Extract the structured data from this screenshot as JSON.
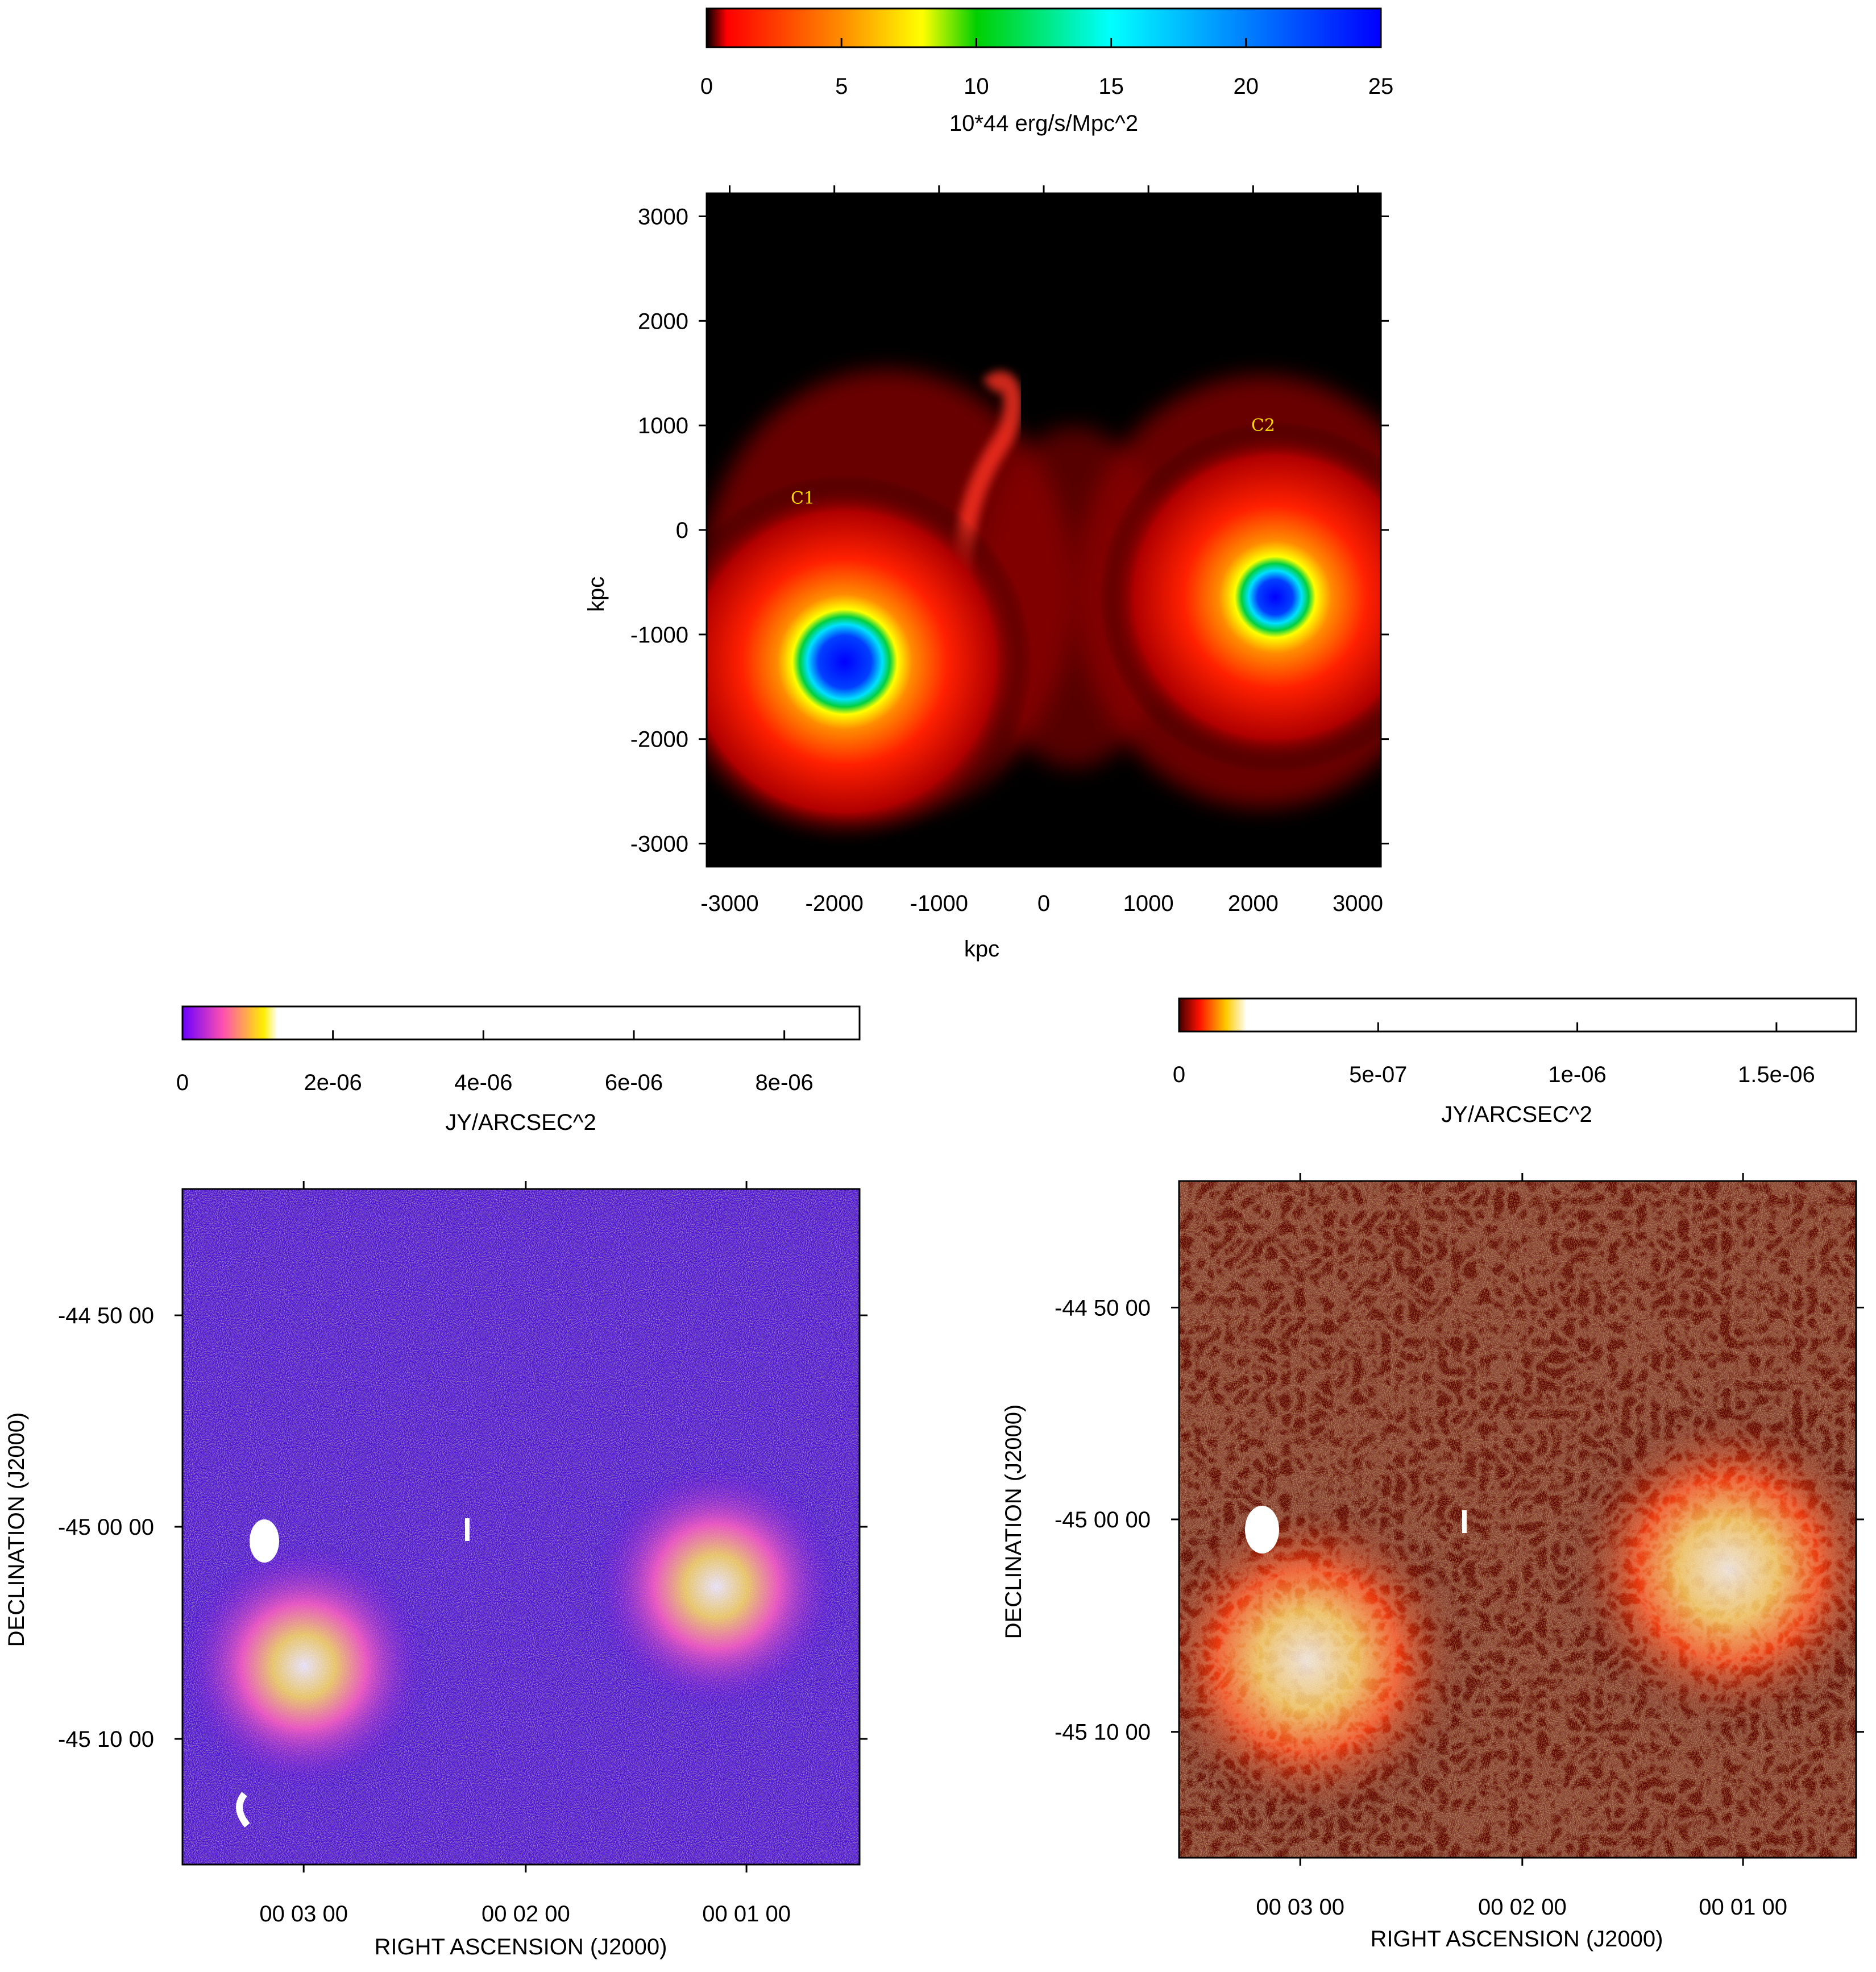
{
  "top_panel": {
    "colorbar": {
      "tick_labels": [
        "0",
        "5",
        "10",
        "15",
        "20",
        "25"
      ],
      "tick_values": [
        0,
        5,
        10,
        15,
        20,
        25
      ],
      "label": "10*44 erg/s/Mpc^2",
      "colormap": [
        "#000000",
        "#ff0000",
        "#ff8c00",
        "#ffff00",
        "#00e000",
        "#00ffff",
        "#0080ff",
        "#0000ff"
      ]
    },
    "axes": {
      "x_tick_labels": [
        "-3000",
        "-2000",
        "-1000",
        "0",
        "1000",
        "2000",
        "3000"
      ],
      "x_tick_values": [
        -3000,
        -2000,
        -1000,
        0,
        1000,
        2000,
        3000
      ],
      "y_tick_labels": [
        "3000",
        "2000",
        "1000",
        "0",
        "-1000",
        "-2000",
        "-3000"
      ],
      "y_tick_values": [
        3000,
        2000,
        1000,
        0,
        -1000,
        -2000,
        -3000
      ],
      "xlabel": "kpc",
      "ylabel": "kpc"
    },
    "annotations": {
      "c1": "C1",
      "c2": "C2"
    }
  },
  "bottom_left_panel": {
    "colorbar": {
      "tick_labels": [
        "0",
        "2e-06",
        "4e-06",
        "6e-06",
        "8e-06"
      ],
      "tick_values": [
        0,
        2e-06,
        4e-06,
        6e-06,
        8e-06
      ],
      "label": "JY/ARCSEC^2",
      "colormap": [
        "#7a00ff",
        "#ff40c0",
        "#ffe000",
        "#ffffff"
      ]
    },
    "axes": {
      "x_tick_labels": [
        "00 03 00",
        "00 02 00",
        "00 01 00"
      ],
      "y_tick_labels": [
        "-44 50 00",
        "-45 00 00",
        "-45 10 00"
      ],
      "xlabel": "RIGHT ASCENSION  (J2000)",
      "ylabel": "DECLINATION  (J2000)"
    }
  },
  "bottom_right_panel": {
    "colorbar": {
      "tick_labels": [
        "0",
        "5e-07",
        "1e-06",
        "1.5e-06"
      ],
      "tick_values": [
        0,
        5e-07,
        1e-06,
        1.5e-06
      ],
      "label": "JY/ARCSEC^2",
      "colormap": [
        "#600000",
        "#ff2000",
        "#ffd000",
        "#ffffff"
      ]
    },
    "axes": {
      "x_tick_labels": [
        "00 03 00",
        "00 02 00",
        "00 01 00"
      ],
      "y_tick_labels": [
        "-44 50 00",
        "-45 00 00",
        "-45 10 00"
      ],
      "xlabel": "RIGHT ASCENSION  (J2000)",
      "ylabel": "DECLINATION  (J2000)"
    }
  }
}
